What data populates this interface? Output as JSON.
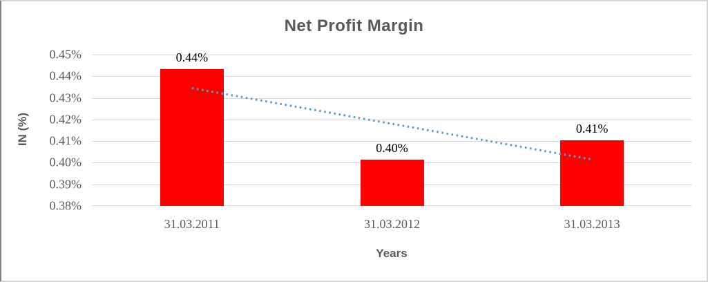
{
  "colors": {
    "bar": "#FF0000",
    "trendline": "#5B9BD5",
    "gridline": "#D9D9D9",
    "heading_text": "#595959",
    "tick_text": "#595959",
    "data_label_text": "#000000",
    "frame_border": "#D4D4D4"
  },
  "chart_data": {
    "type": "bar",
    "title": "Net Profit Margin",
    "xlabel": "Years",
    "ylabel": "IN (%)",
    "categories": [
      "31.03.2011",
      "31.03.2012",
      "31.03.2013"
    ],
    "values": [
      0.4434,
      0.4015,
      0.4103
    ],
    "data_labels": [
      "0.44%",
      "0.40%",
      "0.41%"
    ],
    "ylim": [
      0.38,
      0.45
    ],
    "y_ticks": [
      "0.45%",
      "0.44%",
      "0.43%",
      "0.42%",
      "0.41%",
      "0.40%",
      "0.39%",
      "0.38%"
    ],
    "y_tick_values": [
      0.45,
      0.44,
      0.43,
      0.42,
      0.41,
      0.4,
      0.39,
      0.38
    ],
    "grid": true,
    "legend": false,
    "trendline": {
      "style": "dotted",
      "color": "#5B9BD5",
      "start_value": 0.4345,
      "end_value": 0.4015
    }
  }
}
